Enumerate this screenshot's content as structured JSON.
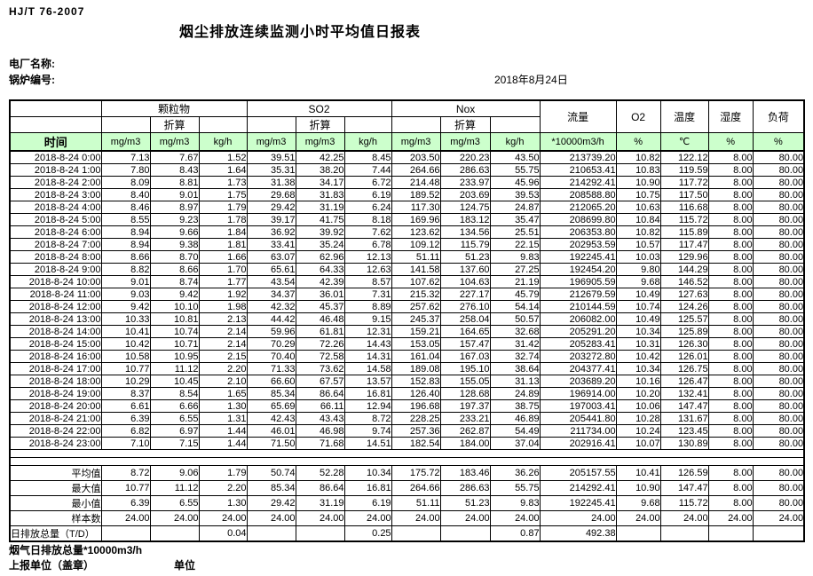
{
  "doc": {
    "standard": "HJ/T  76-2007",
    "title": "烟尘排放连续监测小时平均值日报表",
    "plant_label": "电厂名称:",
    "boiler_label": "锅炉编号:",
    "date": "2018年8月24日"
  },
  "table": {
    "time_label": "时间",
    "converted_label": "折算",
    "groups": [
      {
        "label": "颗粒物"
      },
      {
        "label": "SO2"
      },
      {
        "label": "Nox"
      }
    ],
    "group_units": [
      "mg/m3",
      "mg/m3",
      "kg/h"
    ],
    "single_cols": [
      {
        "label": "流量",
        "unit": "*10000m3/h"
      },
      {
        "label": "O2",
        "unit": "%"
      },
      {
        "label": "温度",
        "unit": "℃"
      },
      {
        "label": "湿度",
        "unit": "%"
      },
      {
        "label": "负荷",
        "unit": "%"
      }
    ],
    "rows": [
      [
        "2018-8-24  0:00",
        "7.13",
        "7.67",
        "1.52",
        "39.51",
        "42.25",
        "8.45",
        "203.50",
        "220.23",
        "43.50",
        "213739.20",
        "10.82",
        "122.12",
        "8.00",
        "80.00"
      ],
      [
        "2018-8-24  1:00",
        "7.80",
        "8.43",
        "1.64",
        "35.31",
        "38.20",
        "7.44",
        "264.66",
        "286.63",
        "55.75",
        "210653.41",
        "10.83",
        "119.59",
        "8.00",
        "80.00"
      ],
      [
        "2018-8-24  2:00",
        "8.09",
        "8.81",
        "1.73",
        "31.38",
        "34.17",
        "6.72",
        "214.48",
        "233.97",
        "45.96",
        "214292.41",
        "10.90",
        "117.72",
        "8.00",
        "80.00"
      ],
      [
        "2018-8-24  3:00",
        "8.40",
        "9.01",
        "1.75",
        "29.68",
        "31.83",
        "6.19",
        "189.52",
        "203.69",
        "39.53",
        "208588.80",
        "10.75",
        "117.50",
        "8.00",
        "80.00"
      ],
      [
        "2018-8-24  4:00",
        "8.46",
        "8.97",
        "1.79",
        "29.42",
        "31.19",
        "6.24",
        "117.30",
        "124.75",
        "24.87",
        "212065.20",
        "10.63",
        "116.68",
        "8.00",
        "80.00"
      ],
      [
        "2018-8-24  5:00",
        "8.55",
        "9.23",
        "1.78",
        "39.17",
        "41.75",
        "8.18",
        "169.96",
        "183.12",
        "35.47",
        "208699.80",
        "10.84",
        "115.72",
        "8.00",
        "80.00"
      ],
      [
        "2018-8-24  6:00",
        "8.94",
        "9.66",
        "1.84",
        "36.92",
        "39.92",
        "7.62",
        "123.62",
        "134.56",
        "25.51",
        "206353.80",
        "10.82",
        "115.89",
        "8.00",
        "80.00"
      ],
      [
        "2018-8-24  7:00",
        "8.94",
        "9.38",
        "1.81",
        "33.41",
        "35.24",
        "6.78",
        "109.12",
        "115.79",
        "22.15",
        "202953.59",
        "10.57",
        "117.47",
        "8.00",
        "80.00"
      ],
      [
        "2018-8-24  8:00",
        "8.66",
        "8.70",
        "1.66",
        "63.07",
        "62.96",
        "12.13",
        "51.11",
        "51.23",
        "9.83",
        "192245.41",
        "10.03",
        "129.96",
        "8.00",
        "80.00"
      ],
      [
        "2018-8-24  9:00",
        "8.82",
        "8.66",
        "1.70",
        "65.61",
        "64.33",
        "12.63",
        "141.58",
        "137.60",
        "27.25",
        "192454.20",
        "9.80",
        "144.29",
        "8.00",
        "80.00"
      ],
      [
        "2018-8-24 10:00",
        "9.01",
        "8.74",
        "1.77",
        "43.54",
        "42.39",
        "8.57",
        "107.62",
        "104.63",
        "21.19",
        "196905.59",
        "9.68",
        "146.52",
        "8.00",
        "80.00"
      ],
      [
        "2018-8-24 11:00",
        "9.03",
        "9.42",
        "1.92",
        "34.37",
        "36.01",
        "7.31",
        "215.32",
        "227.17",
        "45.79",
        "212679.59",
        "10.49",
        "127.63",
        "8.00",
        "80.00"
      ],
      [
        "2018-8-24 12:00",
        "9.42",
        "10.10",
        "1.98",
        "42.32",
        "45.37",
        "8.89",
        "257.62",
        "276.10",
        "54.14",
        "210144.59",
        "10.74",
        "124.26",
        "8.00",
        "80.00"
      ],
      [
        "2018-8-24 13:00",
        "10.33",
        "10.81",
        "2.13",
        "44.42",
        "46.48",
        "9.15",
        "245.37",
        "258.04",
        "50.57",
        "206082.00",
        "10.49",
        "125.57",
        "8.00",
        "80.00"
      ],
      [
        "2018-8-24 14:00",
        "10.41",
        "10.74",
        "2.14",
        "59.96",
        "61.81",
        "12.31",
        "159.21",
        "164.65",
        "32.68",
        "205291.20",
        "10.34",
        "125.89",
        "8.00",
        "80.00"
      ],
      [
        "2018-8-24 15:00",
        "10.42",
        "10.71",
        "2.14",
        "70.29",
        "72.26",
        "14.43",
        "153.05",
        "157.47",
        "31.42",
        "205283.41",
        "10.31",
        "126.30",
        "8.00",
        "80.00"
      ],
      [
        "2018-8-24 16:00",
        "10.58",
        "10.95",
        "2.15",
        "70.40",
        "72.58",
        "14.31",
        "161.04",
        "167.03",
        "32.74",
        "203272.80",
        "10.42",
        "126.01",
        "8.00",
        "80.00"
      ],
      [
        "2018-8-24 17:00",
        "10.77",
        "11.12",
        "2.20",
        "71.33",
        "73.62",
        "14.58",
        "189.08",
        "195.10",
        "38.64",
        "204377.41",
        "10.34",
        "126.75",
        "8.00",
        "80.00"
      ],
      [
        "2018-8-24 18:00",
        "10.29",
        "10.45",
        "2.10",
        "66.60",
        "67.57",
        "13.57",
        "152.83",
        "155.05",
        "31.13",
        "203689.20",
        "10.16",
        "126.47",
        "8.00",
        "80.00"
      ],
      [
        "2018-8-24 19:00",
        "8.37",
        "8.54",
        "1.65",
        "85.34",
        "86.64",
        "16.81",
        "126.40",
        "128.68",
        "24.89",
        "196914.00",
        "10.20",
        "132.41",
        "8.00",
        "80.00"
      ],
      [
        "2018-8-24 20:00",
        "6.61",
        "6.66",
        "1.30",
        "65.69",
        "66.11",
        "12.94",
        "196.68",
        "197.37",
        "38.75",
        "197003.41",
        "10.06",
        "147.47",
        "8.00",
        "80.00"
      ],
      [
        "2018-8-24 21:00",
        "6.39",
        "6.55",
        "1.31",
        "42.43",
        "43.43",
        "8.72",
        "228.25",
        "233.21",
        "46.89",
        "205441.80",
        "10.28",
        "131.67",
        "8.00",
        "80.00"
      ],
      [
        "2018-8-24 22:00",
        "6.82",
        "6.97",
        "1.44",
        "46.01",
        "46.98",
        "9.74",
        "257.36",
        "262.87",
        "54.49",
        "211734.00",
        "10.24",
        "123.45",
        "8.00",
        "80.00"
      ],
      [
        "2018-8-24 23:00",
        "7.10",
        "7.15",
        "1.44",
        "71.50",
        "71.68",
        "14.51",
        "182.54",
        "184.00",
        "37.04",
        "202916.41",
        "10.07",
        "130.89",
        "8.00",
        "80.00"
      ]
    ],
    "summary": [
      {
        "label": "平均值",
        "values": [
          "8.72",
          "9.06",
          "1.79",
          "50.74",
          "52.28",
          "10.34",
          "175.72",
          "183.46",
          "36.26",
          "205157.55",
          "10.41",
          "126.59",
          "8.00",
          "80.00"
        ]
      },
      {
        "label": "最大值",
        "values": [
          "10.77",
          "11.12",
          "2.20",
          "85.34",
          "86.64",
          "16.81",
          "264.66",
          "286.63",
          "55.75",
          "214292.41",
          "10.90",
          "147.47",
          "8.00",
          "80.00"
        ]
      },
      {
        "label": "最小值",
        "values": [
          "6.39",
          "6.55",
          "1.30",
          "29.42",
          "31.19",
          "6.19",
          "51.11",
          "51.23",
          "9.83",
          "192245.41",
          "9.68",
          "115.72",
          "8.00",
          "80.00"
        ]
      },
      {
        "label": "样本数",
        "values": [
          "24.00",
          "24.00",
          "24.00",
          "24.00",
          "24.00",
          "24.00",
          "24.00",
          "24.00",
          "24.00",
          "24.00",
          "24.00",
          "24.00",
          "24.00",
          "24.00"
        ]
      }
    ],
    "daily_total": {
      "label": "日排放总量（T/D）",
      "values": [
        "",
        "",
        "0.04",
        "",
        "",
        "0.25",
        "",
        "",
        "0.87",
        "492.38",
        "",
        "",
        "",
        ""
      ]
    }
  },
  "footer": {
    "flue_total": "烟气日排放总量*10000m3/h",
    "report_unit": "上报单位（盖章）",
    "unit": "单位"
  },
  "colors": {
    "header_row_bg": "#ccffcc",
    "border": "#000000",
    "text": "#000000"
  }
}
